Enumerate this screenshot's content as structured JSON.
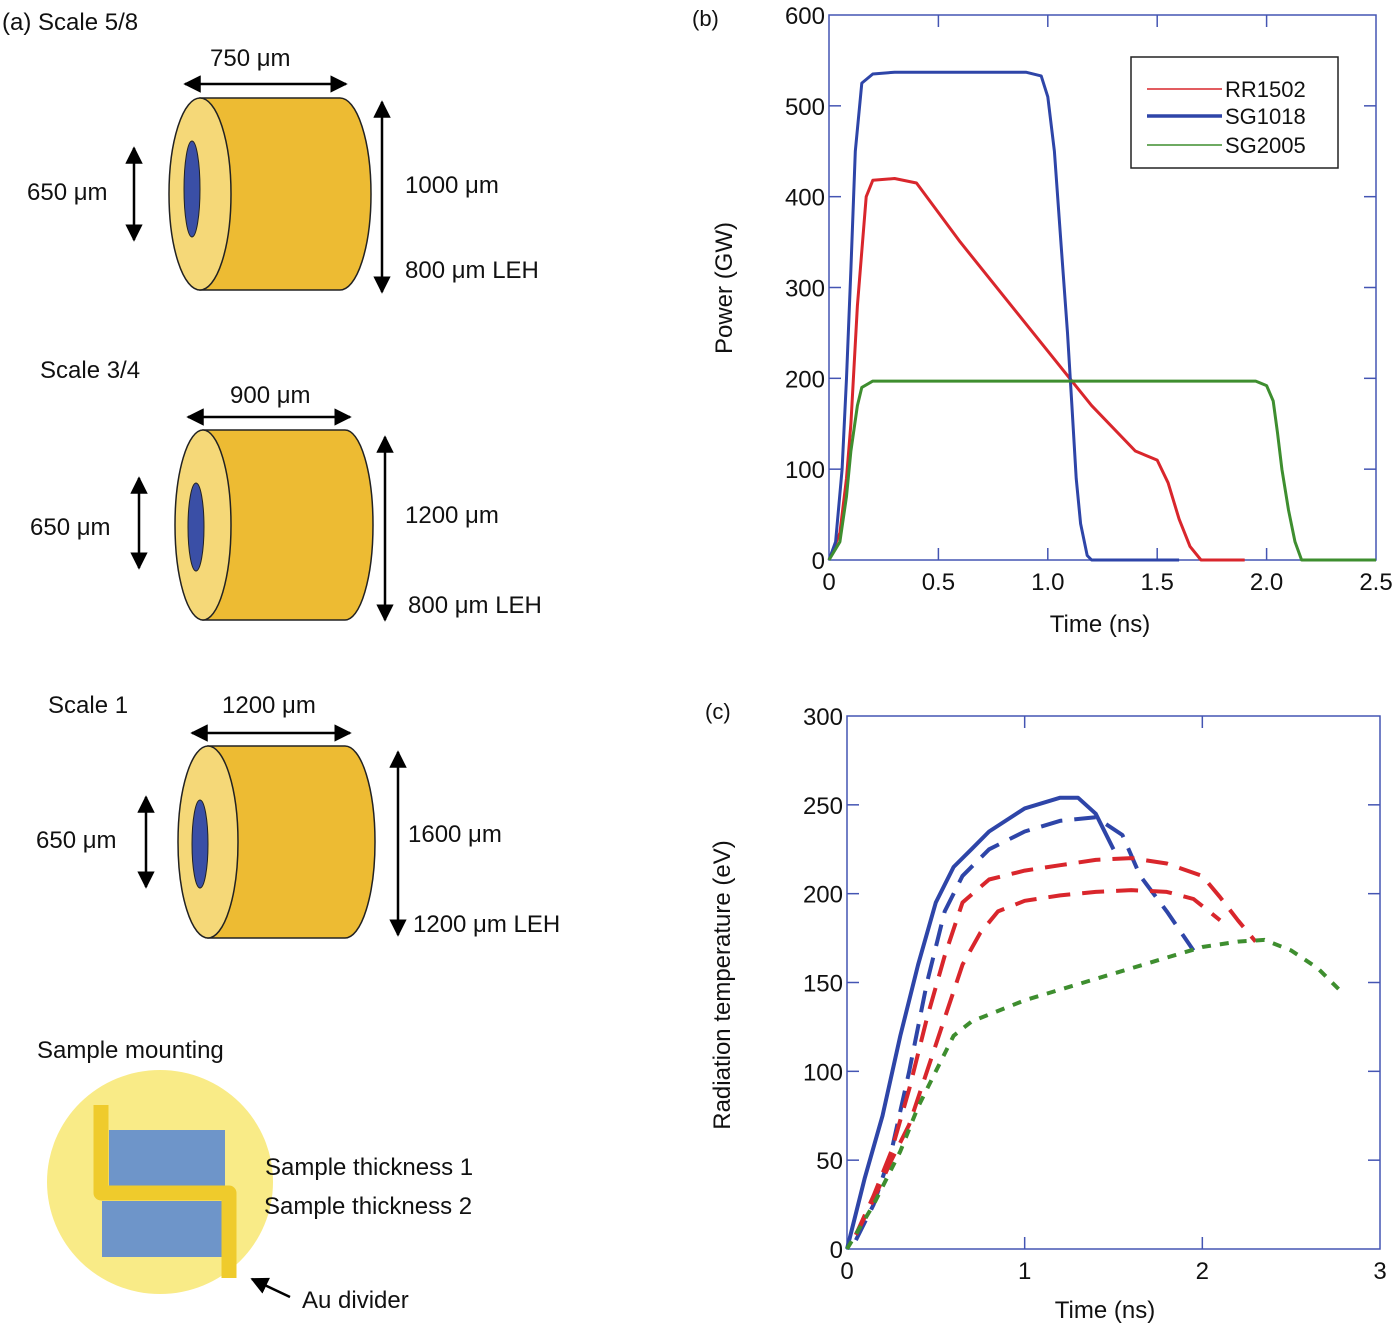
{
  "panel_a": {
    "label": "(a)",
    "hohlraums": [
      {
        "scale_label": "Scale 5/8",
        "length_label": "750 μm",
        "diameter_label": "1000 μm",
        "leh_label": "800 μm LEH",
        "inner_label": "650 μm"
      },
      {
        "scale_label": "Scale 3/4",
        "length_label": "900 μm",
        "diameter_label": "1200 μm",
        "leh_label": "800 μm LEH",
        "inner_label": "650 μm"
      },
      {
        "scale_label": "Scale 1",
        "length_label": "1200 μm",
        "diameter_label": "1600 μm",
        "leh_label": "1200 μm LEH",
        "inner_label": "650 μm"
      }
    ],
    "sample_mounting": {
      "title": "Sample mounting",
      "thickness1": "Sample thickness 1",
      "thickness2": "Sample thickness 2",
      "divider": "Au divider"
    },
    "colors": {
      "gold": "#EDBB33",
      "gold_light": "#F5D878",
      "hole": "#3A4FA6",
      "disk": "#F9EB87",
      "sample": "#6E95C9",
      "divider": "#EFCB2C"
    }
  },
  "chart_data": [
    {
      "panel_label": "(b)",
      "type": "line",
      "xlabel": "Time (ns)",
      "ylabel": "Power (GW)",
      "xlim": [
        0,
        2.5
      ],
      "ylim": [
        0,
        600
      ],
      "xticks": [
        0,
        0.5,
        1.0,
        1.5,
        2.0,
        2.5
      ],
      "xtick_labels": [
        "0",
        "0.5",
        "1.0",
        "1.5",
        "2.0",
        "2.5"
      ],
      "yticks": [
        0,
        100,
        200,
        300,
        400,
        500,
        600
      ],
      "ytick_labels": [
        "0",
        "100",
        "200",
        "300",
        "400",
        "500",
        "600"
      ],
      "legend": {
        "placement": "top-right",
        "entries": [
          "RR1502",
          "SG1018",
          "SG2005"
        ]
      },
      "series": [
        {
          "name": "RR1502",
          "color": "#D9262C",
          "style": "solid",
          "x": [
            0,
            0.05,
            0.08,
            0.1,
            0.13,
            0.17,
            0.2,
            0.3,
            0.4,
            0.6,
            0.8,
            1.0,
            1.2,
            1.4,
            1.5,
            1.55,
            1.6,
            1.65,
            1.7,
            1.75,
            1.9
          ],
          "y": [
            0,
            30,
            90,
            150,
            280,
            400,
            418,
            420,
            415,
            350,
            290,
            230,
            170,
            120,
            110,
            85,
            45,
            15,
            0,
            0,
            0
          ]
        },
        {
          "name": "SG1018",
          "color": "#2E45A8",
          "style": "solid",
          "x": [
            0,
            0.03,
            0.06,
            0.08,
            0.1,
            0.12,
            0.15,
            0.2,
            0.3,
            0.9,
            0.97,
            1.0,
            1.03,
            1.06,
            1.09,
            1.11,
            1.13,
            1.15,
            1.18,
            1.2,
            1.6
          ],
          "y": [
            0,
            20,
            100,
            200,
            320,
            450,
            525,
            535,
            537,
            537,
            533,
            510,
            450,
            350,
            250,
            170,
            90,
            40,
            5,
            0,
            0
          ]
        },
        {
          "name": "SG2005",
          "color": "#3E8E2F",
          "style": "solid",
          "x": [
            0,
            0.05,
            0.08,
            0.1,
            0.13,
            0.15,
            0.2,
            0.3,
            1.0,
            1.95,
            2.0,
            2.03,
            2.05,
            2.07,
            2.1,
            2.13,
            2.16,
            2.2,
            2.5
          ],
          "y": [
            0,
            20,
            70,
            120,
            170,
            190,
            197,
            197,
            197,
            197,
            192,
            175,
            140,
            100,
            55,
            20,
            0,
            0,
            0
          ]
        }
      ]
    },
    {
      "panel_label": "(c)",
      "type": "line",
      "xlabel": "Time (ns)",
      "ylabel": "Radiation temperature (eV)",
      "xlim": [
        0,
        3
      ],
      "ylim": [
        0,
        300
      ],
      "xticks": [
        0,
        1,
        2,
        3
      ],
      "xtick_labels": [
        "0",
        "1",
        "2",
        "3"
      ],
      "yticks": [
        0,
        50,
        100,
        150,
        200,
        250,
        300
      ],
      "ytick_labels": [
        "0",
        "50",
        "100",
        "150",
        "200",
        "250",
        "300"
      ],
      "series": [
        {
          "name": "blue-solid",
          "color": "#2E45A8",
          "style": "solid",
          "x": [
            0,
            0.1,
            0.2,
            0.3,
            0.4,
            0.5,
            0.6,
            0.7,
            0.8,
            1.0,
            1.2,
            1.3,
            1.4,
            1.5
          ],
          "y": [
            0,
            40,
            75,
            120,
            160,
            195,
            215,
            225,
            235,
            248,
            254,
            254,
            245,
            225
          ]
        },
        {
          "name": "blue-dashed",
          "color": "#2E45A8",
          "style": "dashed",
          "x": [
            0.05,
            0.15,
            0.25,
            0.35,
            0.45,
            0.55,
            0.65,
            0.8,
            1.0,
            1.2,
            1.4,
            1.55,
            1.65,
            1.8,
            1.95
          ],
          "y": [
            5,
            25,
            55,
            100,
            150,
            190,
            210,
            225,
            235,
            241,
            243,
            233,
            210,
            190,
            168
          ]
        },
        {
          "name": "red-dashed-upper",
          "color": "#D9262C",
          "style": "dashed",
          "x": [
            0.05,
            0.15,
            0.25,
            0.35,
            0.45,
            0.55,
            0.65,
            0.8,
            1.0,
            1.2,
            1.4,
            1.6,
            1.8,
            2.0,
            2.1,
            2.2,
            2.3
          ],
          "y": [
            8,
            30,
            55,
            90,
            130,
            165,
            195,
            208,
            213,
            216,
            219,
            220,
            217,
            210,
            198,
            185,
            173
          ]
        },
        {
          "name": "red-dashed-lower",
          "color": "#D9262C",
          "style": "dashed",
          "x": [
            0.05,
            0.15,
            0.25,
            0.35,
            0.45,
            0.55,
            0.65,
            0.75,
            0.85,
            1.0,
            1.2,
            1.4,
            1.6,
            1.8,
            1.95,
            2.1
          ],
          "y": [
            8,
            28,
            50,
            70,
            100,
            130,
            160,
            178,
            190,
            196,
            199,
            201,
            202,
            201,
            197,
            185
          ]
        },
        {
          "name": "green-dotted",
          "color": "#3E8E2F",
          "style": "dotted",
          "x": [
            0,
            0.15,
            0.3,
            0.4,
            0.5,
            0.6,
            0.7,
            0.8,
            1.0,
            1.2,
            1.4,
            1.6,
            1.8,
            2.0,
            2.2,
            2.35,
            2.5,
            2.65,
            2.8
          ],
          "y": [
            0,
            25,
            55,
            80,
            100,
            120,
            128,
            132,
            140,
            146,
            152,
            158,
            164,
            170,
            173,
            174,
            168,
            158,
            143
          ]
        }
      ]
    }
  ]
}
